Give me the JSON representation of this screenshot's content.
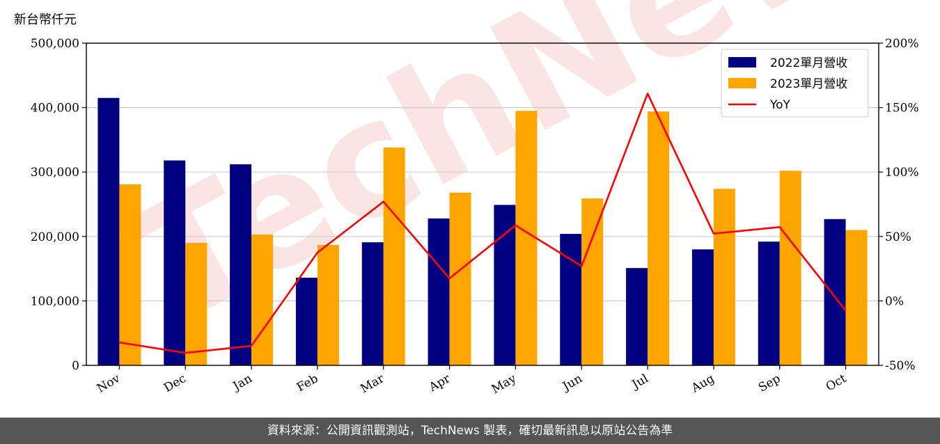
{
  "unit_label": "新台幣仟元",
  "watermark": "TechNews",
  "footer": "資料來源：公開資訊觀測站，TechNews 製表，確切最新訊息以原站公告為準",
  "colors": {
    "series2022": "#000080",
    "series2023": "#ffa500",
    "yoy": "#ff0000",
    "grid": "#cccccc"
  },
  "chart_data": {
    "type": "bar",
    "categories": [
      "Nov",
      "Dec",
      "Jan",
      "Feb",
      "Mar",
      "Apr",
      "May",
      "Jun",
      "Jul",
      "Aug",
      "Sep",
      "Oct"
    ],
    "series": [
      {
        "name": "2022單月營收",
        "values": [
          415000,
          318000,
          312000,
          136000,
          191000,
          228000,
          249000,
          204000,
          151000,
          180000,
          192000,
          227000
        ]
      },
      {
        "name": "2023單月營收",
        "values": [
          281000,
          190000,
          203000,
          187000,
          338000,
          268000,
          395000,
          259000,
          394000,
          274000,
          302000,
          210000
        ]
      },
      {
        "name": "YoY",
        "type": "line",
        "axis": "right",
        "values": [
          -32.2,
          -40.3,
          -34.9,
          37.5,
          77.0,
          17.5,
          58.6,
          27.0,
          160.9,
          52.2,
          57.3,
          -7.5
        ]
      }
    ],
    "ylim": [
      0,
      500000
    ],
    "yticks": [
      "0",
      "100,000",
      "200,000",
      "300,000",
      "400,000",
      "500,000"
    ],
    "y2lim": [
      -50,
      200
    ],
    "y2ticks": [
      "-50%",
      "0%",
      "50%",
      "100%",
      "150%",
      "200%"
    ],
    "grid": true,
    "legend_position": "top-right"
  }
}
